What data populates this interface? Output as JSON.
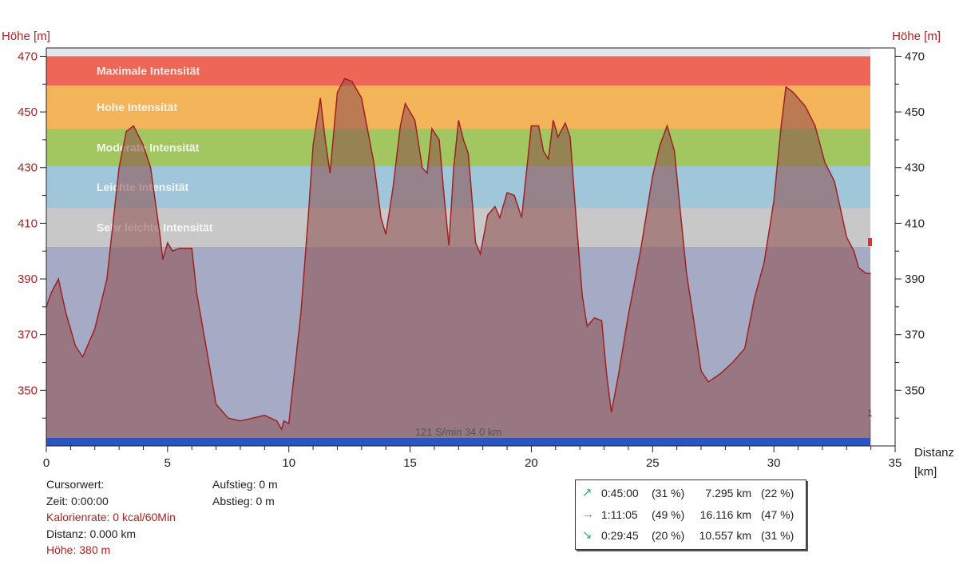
{
  "chart_data": {
    "type": "area",
    "ylabel_left": "Höhe  [m]",
    "ylabel_right": "Höhe  [m]",
    "xlabel_line1": "Distanz",
    "xlabel_line2": "[km]",
    "xlim": [
      0,
      35
    ],
    "ylim": [
      330,
      473
    ],
    "x_ticks": [
      "0",
      "5",
      "10",
      "15",
      "20",
      "25",
      "30",
      "35"
    ],
    "y_ticks": [
      "350",
      "370",
      "390",
      "410",
      "430",
      "450",
      "470"
    ],
    "zones": [
      {
        "label": "Maximale Intensität",
        "from": 459.5,
        "to": 470,
        "color": "#ee6655"
      },
      {
        "label": "Hohe Intensität",
        "from": 444,
        "to": 459.5,
        "color": "#f4b45a"
      },
      {
        "label": "Moderate Intensität",
        "from": 430.5,
        "to": 444,
        "color": "#a2c760"
      },
      {
        "label": "Leichte Intensität",
        "from": 415.5,
        "to": 430.5,
        "color": "#9fc6d9"
      },
      {
        "label": "Sehr leichte Intensität",
        "from": 401.5,
        "to": 415.5,
        "color": "#c8c8c8"
      }
    ],
    "series": [
      {
        "x": [
          0,
          0.2,
          0.5,
          0.8,
          1.2,
          1.5,
          2.0,
          2.5,
          3.0,
          3.3,
          3.6,
          4.0,
          4.3,
          4.7,
          4.8,
          5.0,
          5.2,
          5.5,
          6.0,
          6.2,
          6.6,
          7.0,
          7.5,
          8.0,
          8.5,
          9.0,
          9.5,
          9.7,
          9.8,
          10.0,
          10.5,
          10.8,
          11.0,
          11.3,
          11.5,
          11.7,
          12.0,
          12.3,
          12.6,
          13.0,
          13.5,
          13.8,
          14.0,
          14.3,
          14.6,
          14.8,
          15.2,
          15.5,
          15.7,
          15.9,
          16.2,
          16.4,
          16.6,
          16.8,
          17.0,
          17.2,
          17.4,
          17.7,
          17.9,
          18.2,
          18.5,
          18.7,
          19.0,
          19.3,
          19.6,
          20.0,
          20.3,
          20.5,
          20.7,
          20.9,
          21.1,
          21.4,
          21.6,
          21.8,
          22.1,
          22.3,
          22.6,
          22.9,
          23.1,
          23.3,
          23.6,
          24.0,
          24.5,
          25.0,
          25.3,
          25.6,
          25.9,
          26.1,
          26.4,
          26.7,
          27.0,
          27.3,
          27.8,
          28.3,
          28.8,
          29.2,
          29.6,
          30.0,
          30.3,
          30.5,
          30.8,
          31.0,
          31.3,
          31.7,
          32.1,
          32.5,
          33.0,
          33.3,
          33.5,
          33.8,
          34.0
        ],
        "y": [
          380,
          385,
          390,
          378,
          366,
          362,
          372,
          390,
          430,
          443,
          445,
          438,
          430,
          405,
          397,
          403,
          400,
          401,
          401,
          385,
          365,
          345,
          340,
          339,
          340,
          341,
          339,
          336,
          339,
          338,
          378,
          412,
          438,
          455,
          440,
          428,
          457,
          462,
          461,
          455,
          432,
          412,
          406,
          423,
          445,
          453,
          447,
          430,
          428,
          444,
          440,
          420,
          402,
          430,
          447,
          440,
          435,
          403,
          399,
          413,
          416,
          412,
          421,
          420,
          412,
          445,
          445,
          436,
          433,
          447,
          441,
          446,
          441,
          417,
          384,
          373,
          376,
          375,
          356,
          342,
          356,
          377,
          400,
          427,
          438,
          445,
          436,
          418,
          392,
          375,
          357,
          353,
          356,
          360,
          365,
          383,
          396,
          418,
          445,
          459,
          457,
          455,
          452,
          445,
          432,
          425,
          405,
          400,
          394,
          392,
          392
        ],
        "color": "#a02020"
      }
    ],
    "overlay_text": "121 S/min 34.0 km",
    "end_marker_label": "1"
  },
  "info": {
    "cursor_label": "Cursorwert:",
    "time": "Zeit: 0:00:00",
    "calories": "Kalorienrate: 0 kcal/60Min",
    "distance": "Distanz: 0.000 km",
    "altitude": "Höhe:  380 m",
    "ascent": "Aufstieg: 0 m",
    "descent": "Abstieg: 0 m"
  },
  "stats": [
    {
      "icon": "arrow-up-right-icon",
      "glyph": "↗",
      "time": "0:45:00",
      "time_pct": "(31 %)",
      "dist": "7.295 km",
      "dist_pct": "(22 %)"
    },
    {
      "icon": "arrow-right-icon",
      "glyph": "→",
      "time": "1:11:05",
      "time_pct": "(49 %)",
      "dist": "16.116 km",
      "dist_pct": "(47 %)"
    },
    {
      "icon": "arrow-down-right-icon",
      "glyph": "↘",
      "time": "0:29:45",
      "time_pct": "(20 %)",
      "dist": "10.557 km",
      "dist_pct": "(31 %)"
    }
  ],
  "colors": {
    "axis_label": "#b02020",
    "plot_background": "#a6abc5",
    "area_fill": "#8c4a4a",
    "line": "#a02020",
    "bottom_bar": "#2a55c0"
  }
}
